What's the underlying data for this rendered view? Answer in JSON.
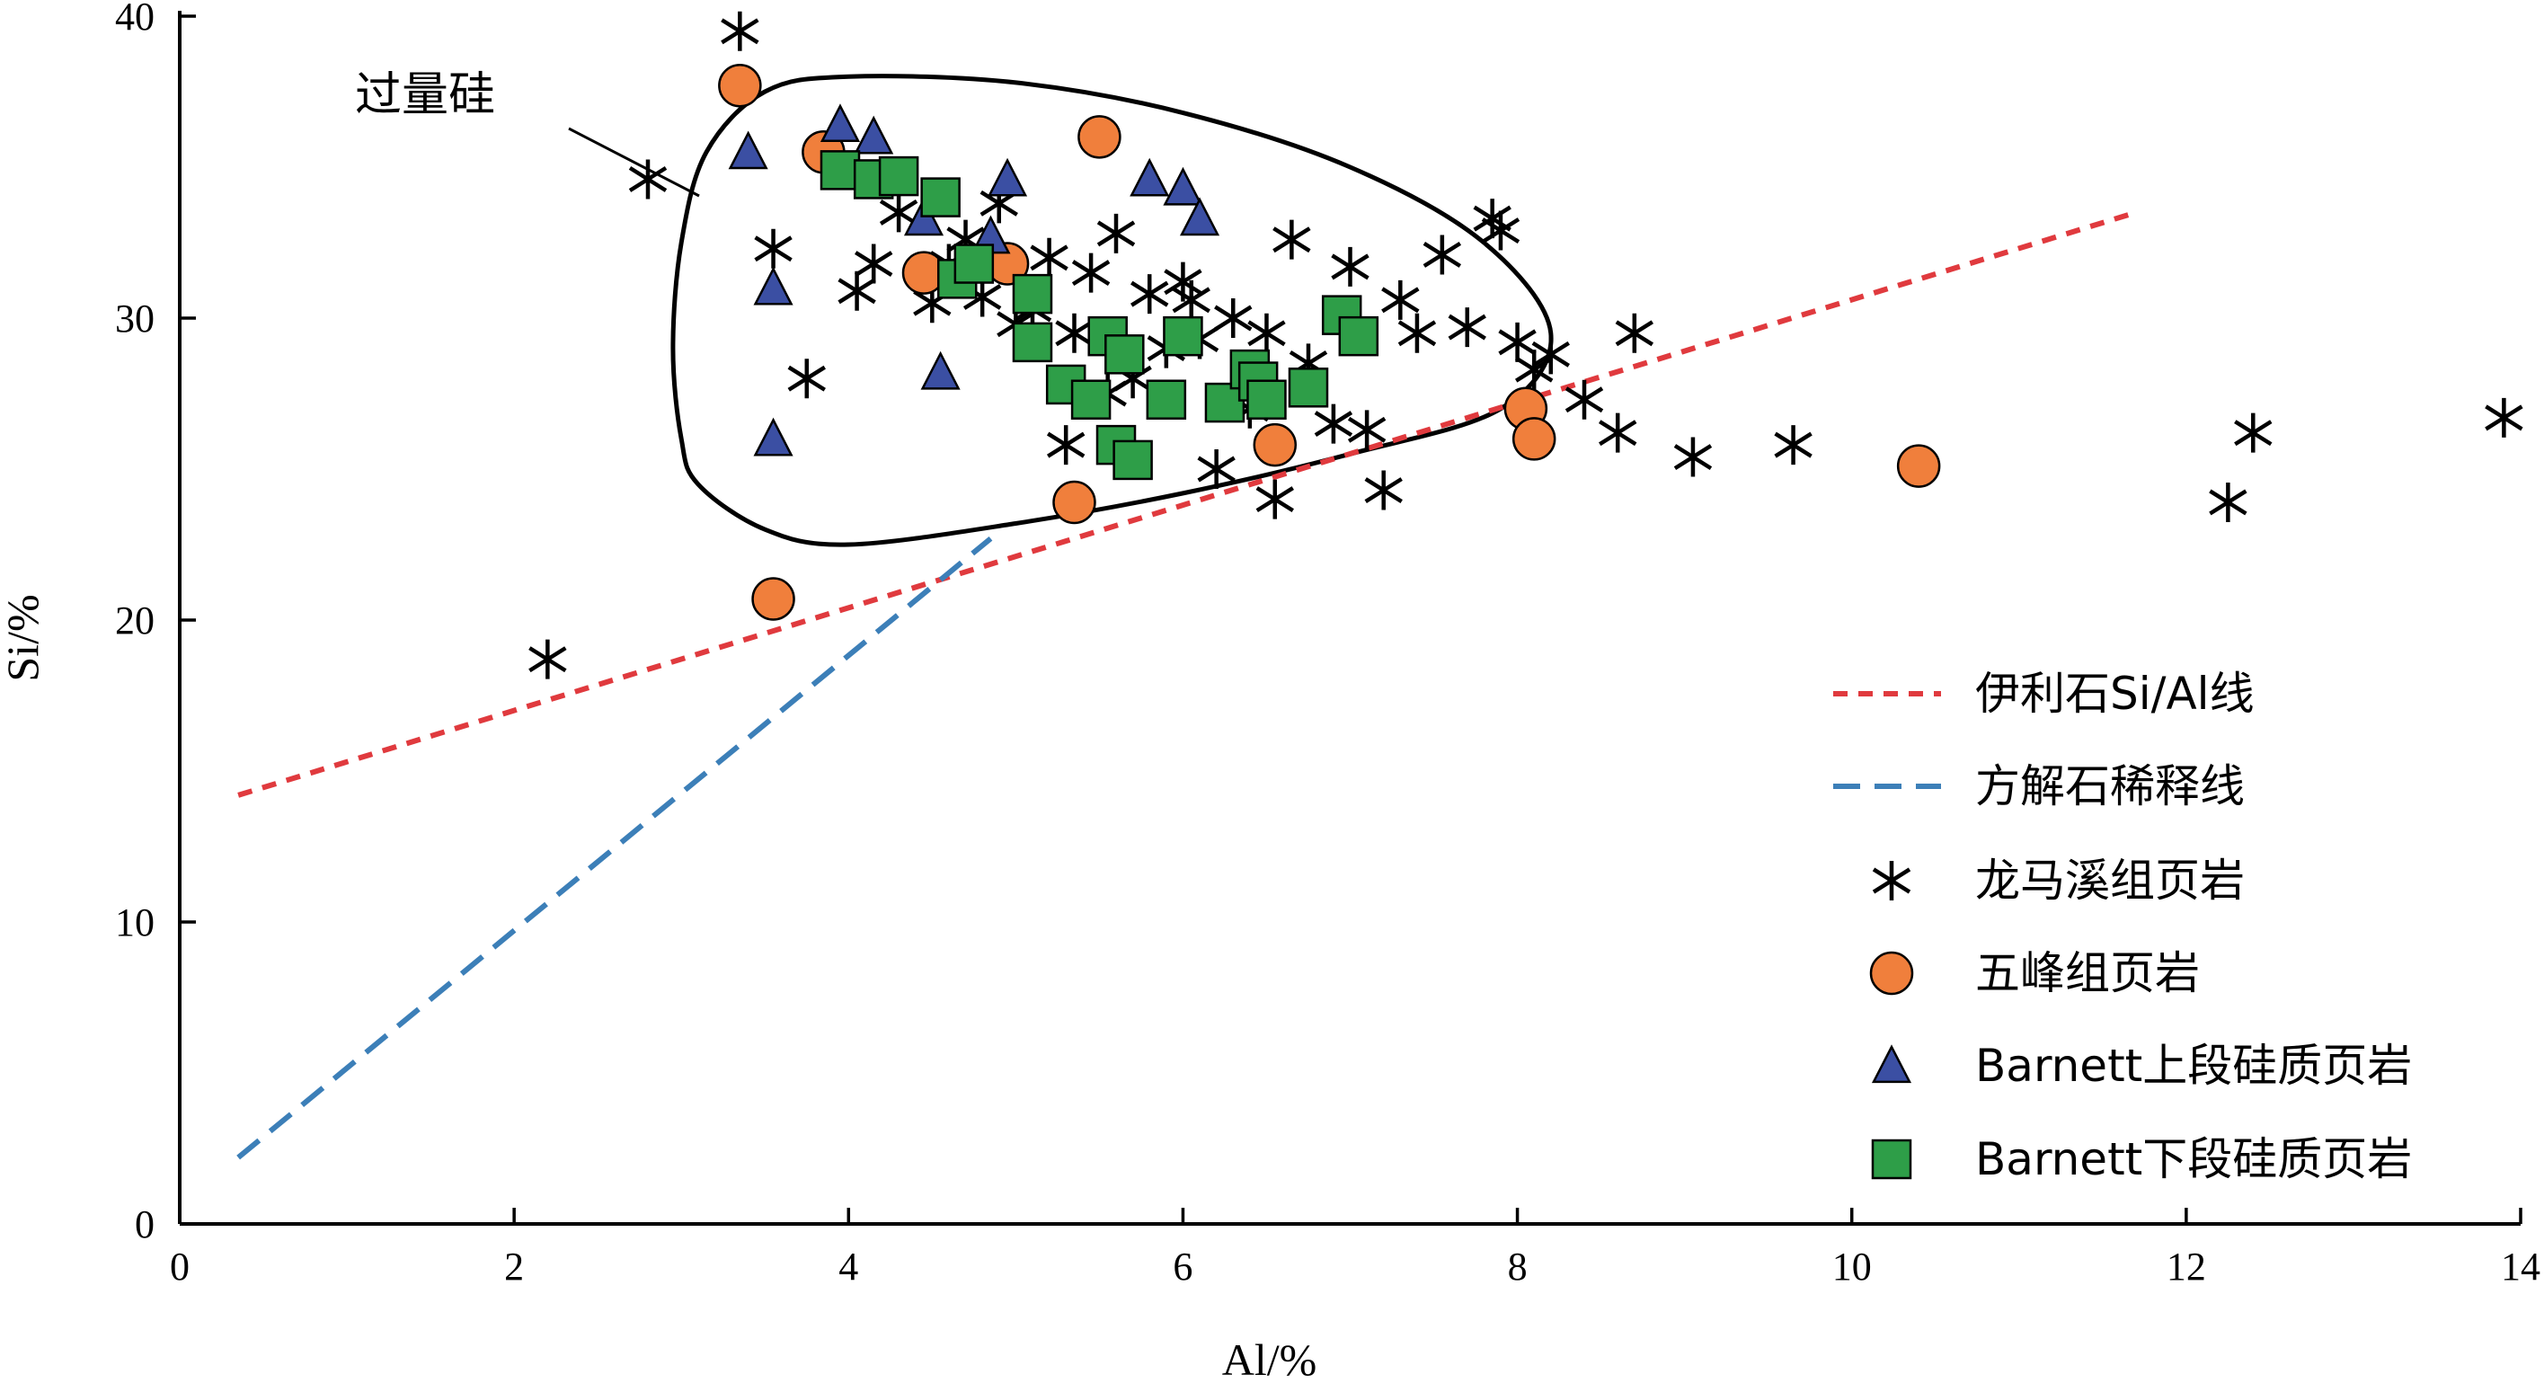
{
  "chart_data": {
    "type": "scatter",
    "xlabel": "Al/%",
    "ylabel": "Si/%",
    "xlim": [
      0,
      14
    ],
    "ylim": [
      0,
      40
    ],
    "xticks": [
      0,
      2,
      4,
      6,
      8,
      10,
      12,
      14
    ],
    "yticks": [
      0,
      10,
      20,
      30,
      40
    ],
    "grid": false,
    "legend_position": "bottom-right",
    "annotation": {
      "text": "过量硅",
      "region_outline": [
        [
          3.0,
          26.0
        ],
        [
          2.95,
          29.0
        ],
        [
          3.0,
          32.5
        ],
        [
          3.15,
          35.5
        ],
        [
          3.5,
          37.5
        ],
        [
          4.0,
          38.0
        ],
        [
          5.0,
          37.8
        ],
        [
          6.0,
          36.8
        ],
        [
          7.0,
          35.0
        ],
        [
          7.8,
          32.5
        ],
        [
          8.2,
          29.5
        ],
        [
          7.9,
          27.0
        ],
        [
          7.0,
          25.5
        ],
        [
          6.0,
          24.2
        ],
        [
          5.0,
          23.2
        ],
        [
          4.0,
          22.5
        ],
        [
          3.5,
          23.0
        ],
        [
          3.1,
          24.5
        ]
      ]
    },
    "reference_lines": [
      {
        "name": "伊利石Si/Al线",
        "style": "dotted",
        "color": "#e03a3e",
        "x": [
          0.35,
          11.7
        ],
        "y": [
          14.2,
          33.5
        ]
      },
      {
        "name": "方解石稀释线",
        "style": "dashed",
        "color": "#3c7fb8",
        "x": [
          0.35,
          4.85
        ],
        "y": [
          2.2,
          22.7
        ]
      }
    ],
    "series": [
      {
        "name": "龙马溪组页岩",
        "marker": "asterisk",
        "color": "#000000",
        "x": [
          2.2,
          2.8,
          3.35,
          3.55,
          3.75,
          4.05,
          4.15,
          4.3,
          4.5,
          4.6,
          4.7,
          4.8,
          4.9,
          5.0,
          5.1,
          5.2,
          5.3,
          5.35,
          5.45,
          5.55,
          5.6,
          5.7,
          5.8,
          5.9,
          6.0,
          6.05,
          6.1,
          6.2,
          6.3,
          6.4,
          6.5,
          6.55,
          6.65,
          6.75,
          6.9,
          7.0,
          7.1,
          7.2,
          7.3,
          7.4,
          7.55,
          7.7,
          7.85,
          7.9,
          8.0,
          8.1,
          8.2,
          8.4,
          8.6,
          8.7,
          9.05,
          9.65,
          12.25,
          12.4,
          13.9
        ],
        "y": [
          18.7,
          34.6,
          39.5,
          32.3,
          28.0,
          30.9,
          31.8,
          33.5,
          30.5,
          31.8,
          32.6,
          30.7,
          33.8,
          29.8,
          30.3,
          32.0,
          25.8,
          29.5,
          31.5,
          27.5,
          32.8,
          28.0,
          30.8,
          29.0,
          31.2,
          30.6,
          29.3,
          25.0,
          30.0,
          27.0,
          29.5,
          24.0,
          32.6,
          28.5,
          26.5,
          31.7,
          26.3,
          24.3,
          30.6,
          29.5,
          32.1,
          29.7,
          33.3,
          32.9,
          29.2,
          28.3,
          28.8,
          27.3,
          26.2,
          29.5,
          25.4,
          25.8,
          23.9,
          26.2,
          26.7
        ]
      },
      {
        "name": "五峰组页岩",
        "marker": "circle",
        "color": "#f07f3c",
        "x": [
          3.35,
          3.55,
          3.85,
          4.45,
          4.95,
          5.35,
          5.5,
          6.55,
          8.05,
          8.1,
          10.4
        ],
        "y": [
          37.7,
          20.7,
          35.5,
          31.5,
          31.8,
          23.9,
          36.0,
          25.8,
          27.0,
          26.0,
          25.1
        ]
      },
      {
        "name": "Barnett上段硅质页岩",
        "marker": "triangle",
        "color": "#3b4fa3",
        "x": [
          3.4,
          3.55,
          3.55,
          3.95,
          4.15,
          4.45,
          4.55,
          4.85,
          4.95,
          5.8,
          6.0,
          6.1
        ],
        "y": [
          35.5,
          31.0,
          26.0,
          36.4,
          36.0,
          33.3,
          28.2,
          32.7,
          34.6,
          34.6,
          34.3,
          33.3
        ]
      },
      {
        "name": "Barnett下段硅质页岩",
        "marker": "square",
        "color": "#2e9e48",
        "x": [
          3.95,
          4.15,
          4.3,
          4.55,
          4.65,
          4.75,
          5.1,
          5.1,
          5.3,
          5.45,
          5.55,
          5.65,
          5.6,
          5.7,
          5.9,
          6.0,
          6.25,
          6.4,
          6.45,
          6.5,
          6.75,
          6.95,
          7.05
        ],
        "y": [
          34.9,
          34.6,
          34.7,
          34.0,
          31.3,
          31.8,
          30.8,
          29.2,
          27.8,
          27.3,
          29.4,
          28.8,
          25.8,
          25.3,
          27.3,
          29.4,
          27.2,
          28.3,
          27.9,
          27.3,
          27.7,
          30.1,
          29.4
        ]
      }
    ]
  }
}
